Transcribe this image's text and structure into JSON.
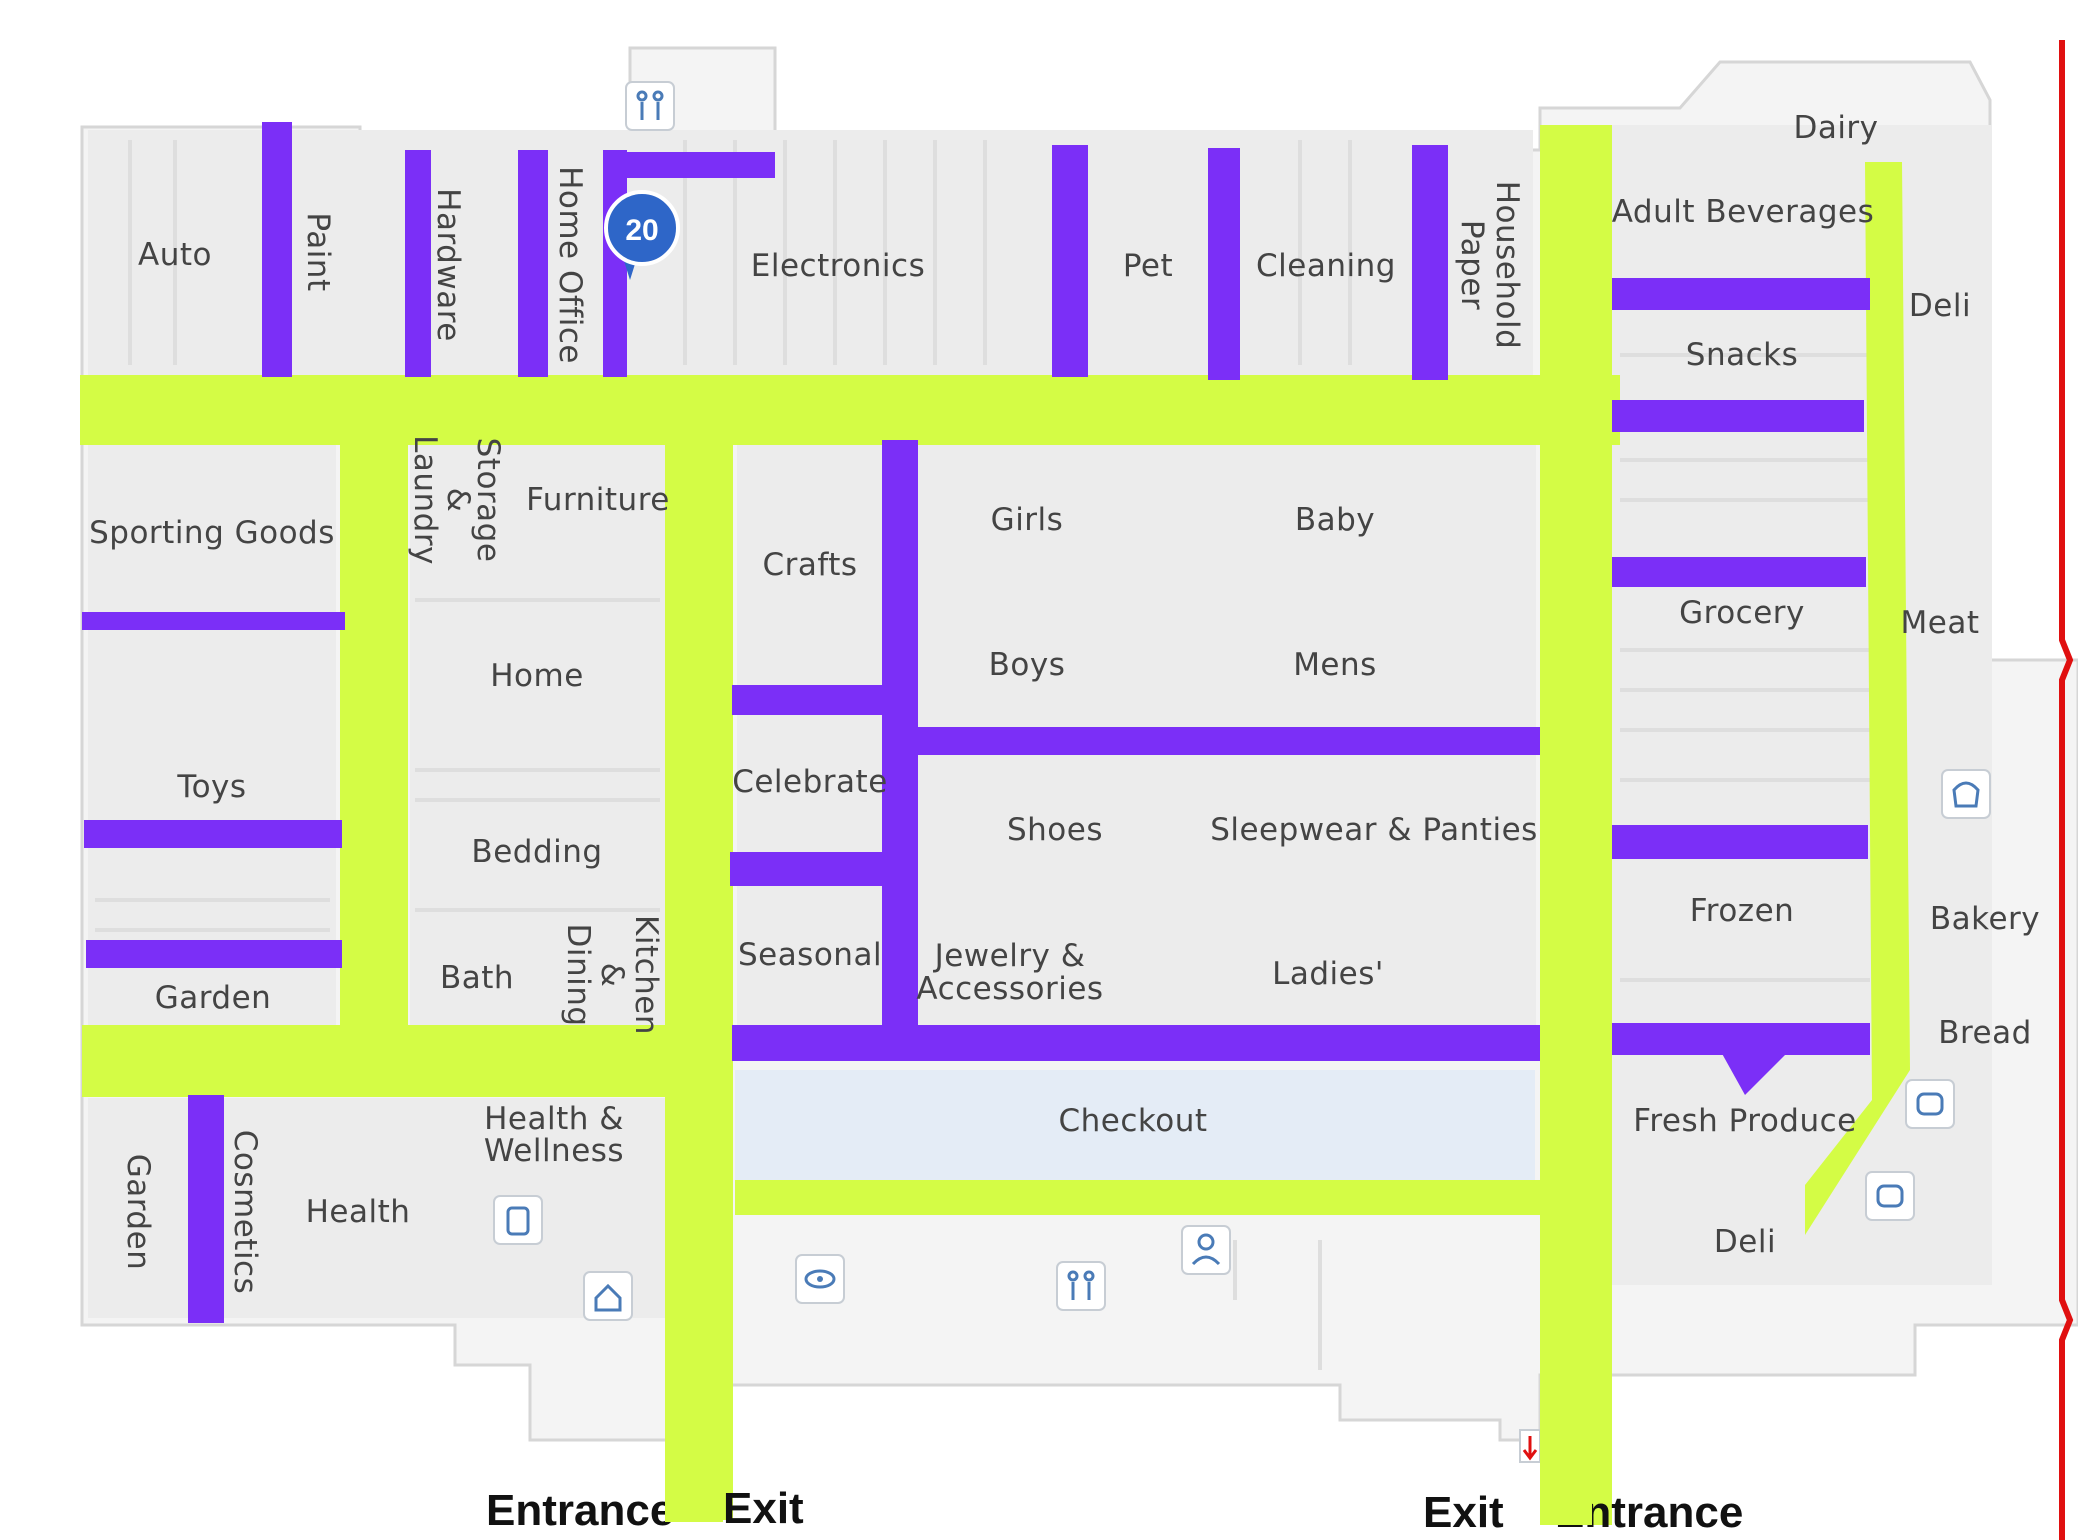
{
  "colors": {
    "main_aisle": "#d4fc45",
    "side_aisle": "#7b2ff7",
    "floor": "#f2f2f2",
    "store_outline": "#d6d6d6",
    "badge": "#2e66c8",
    "border_right": "#e01010"
  },
  "map": {
    "aisle_badge": "20",
    "departments": {
      "auto": "Auto",
      "paint": "Paint",
      "hardware": "Hardware",
      "home_office": "Home Office",
      "electronics": "Electronics",
      "pet": "Pet",
      "cleaning": "Cleaning",
      "household_paper_1": "Household",
      "household_paper_2": "Paper",
      "dairy": "Dairy",
      "adult_beverages": "Adult Beverages",
      "deli_top": "Deli",
      "snacks": "Snacks",
      "sporting_goods": "Sporting Goods",
      "laundry": "Laundry",
      "storage_1": "Storage",
      "storage_2": "&",
      "furniture": "Furniture",
      "crafts": "Crafts",
      "girls": "Girls",
      "baby": "Baby",
      "grocery": "Grocery",
      "meat": "Meat",
      "home": "Home",
      "boys": "Boys",
      "mens": "Mens",
      "toys": "Toys",
      "celebrate": "Celebrate",
      "shoes": "Shoes",
      "sleepwear": "Sleepwear & Panties",
      "bedding": "Bedding",
      "frozen": "Frozen",
      "bakery": "Bakery",
      "bath": "Bath",
      "dining_1": "Dining",
      "dining_2": "&",
      "kitchen": "Kitchen",
      "seasonal": "Seasonal",
      "jewelry_1": "Jewelry &",
      "jewelry_2": "Accessories",
      "ladies": "Ladies'",
      "bread": "Bread",
      "garden_left": "Garden",
      "garden_vertical": "Garden",
      "cosmetics": "Cosmetics",
      "health_wellness_1": "Health &",
      "health_wellness_2": "Wellness",
      "health": "Health",
      "checkout": "Checkout",
      "fresh_produce": "Fresh Produce",
      "deli_bottom": "Deli"
    },
    "doors": {
      "entrance_left": "Entrance",
      "exit_left": "Exit",
      "exit_right": "Exit",
      "entrance_right": "Entrance"
    },
    "icons": [
      "restroom-icon",
      "pharmacy-icon",
      "home-services-icon",
      "vision-center-icon",
      "restroom-icon",
      "customer-service-icon",
      "deli-counter-icon",
      "bakery-counter-icon",
      "fuel-icon"
    ]
  }
}
